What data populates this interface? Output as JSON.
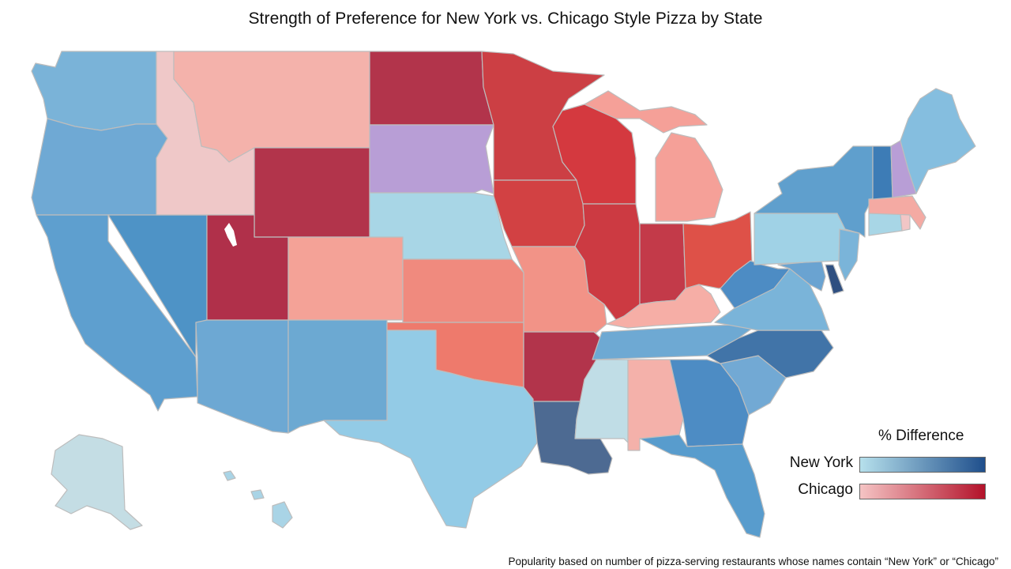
{
  "title": "Strength of Preference for New York vs. Chicago Style Pizza by State",
  "legend": {
    "title": "% Difference",
    "new_york_label": "New York",
    "chicago_label": "Chicago",
    "new_york_color_light": "#b6e0ec",
    "new_york_color_dark": "#1f4f8c",
    "chicago_color_light": "#f5c4c4",
    "chicago_color_dark": "#b3122a",
    "neutral_color": "#b89ed6"
  },
  "footnote": "Popularity based on number of pizza-serving restaurants whose names contain “New York” or “Chicago”",
  "states": [
    {
      "code": "WA",
      "color": "#7ab3d8"
    },
    {
      "code": "OR",
      "color": "#6fa9d4"
    },
    {
      "code": "CA",
      "color": "#5e9fcf"
    },
    {
      "code": "NV",
      "color": "#4e93c6"
    },
    {
      "code": "ID",
      "color": "#efc8c8"
    },
    {
      "code": "MT",
      "color": "#f4b2ab"
    },
    {
      "code": "WY",
      "color": "#b2344b"
    },
    {
      "code": "UT",
      "color": "#b0304a"
    },
    {
      "code": "AZ",
      "color": "#6da8d3"
    },
    {
      "code": "CO",
      "color": "#f4a297"
    },
    {
      "code": "NM",
      "color": "#6ca9d2"
    },
    {
      "code": "ND",
      "color": "#b2344b"
    },
    {
      "code": "SD",
      "color": "#b89ed6"
    },
    {
      "code": "NE",
      "color": "#a8d6e6"
    },
    {
      "code": "KS",
      "color": "#f08a7e"
    },
    {
      "code": "OK",
      "color": "#ee7a6c"
    },
    {
      "code": "TX",
      "color": "#93cbe6"
    },
    {
      "code": "MN",
      "color": "#cc3f44"
    },
    {
      "code": "IA",
      "color": "#d24143"
    },
    {
      "code": "MO",
      "color": "#f29387"
    },
    {
      "code": "AR",
      "color": "#b2344b"
    },
    {
      "code": "LA",
      "color": "#4d6a92"
    },
    {
      "code": "WI",
      "color": "#d4393f"
    },
    {
      "code": "IL",
      "color": "#cc3a42"
    },
    {
      "code": "MI",
      "color": "#f5a098"
    },
    {
      "code": "IN",
      "color": "#c33a49"
    },
    {
      "code": "OH",
      "color": "#de5148"
    },
    {
      "code": "KY",
      "color": "#f6aea6"
    },
    {
      "code": "TN",
      "color": "#6ea9d3"
    },
    {
      "code": "MS",
      "color": "#c0dde6"
    },
    {
      "code": "AL",
      "color": "#f4b1aa"
    },
    {
      "code": "GA",
      "color": "#4d8cc4"
    },
    {
      "code": "FL",
      "color": "#589ccd"
    },
    {
      "code": "SC",
      "color": "#72a9d4"
    },
    {
      "code": "NC",
      "color": "#4174a8"
    },
    {
      "code": "VA",
      "color": "#7ab4d9"
    },
    {
      "code": "WV",
      "color": "#4d8cc4"
    },
    {
      "code": "MD",
      "color": "#6aa3d1"
    },
    {
      "code": "DE",
      "color": "#2f4f80"
    },
    {
      "code": "PA",
      "color": "#a0d2e6"
    },
    {
      "code": "NJ",
      "color": "#7ab4d9"
    },
    {
      "code": "NY",
      "color": "#5f9fcd"
    },
    {
      "code": "CT",
      "color": "#a8d6e6"
    },
    {
      "code": "RI",
      "color": "#f2c6c6"
    },
    {
      "code": "MA",
      "color": "#f4aaa3"
    },
    {
      "code": "VT",
      "color": "#3d7cb6"
    },
    {
      "code": "NH",
      "color": "#b89ed6"
    },
    {
      "code": "ME",
      "color": "#85bedf"
    },
    {
      "code": "AK",
      "color": "#c4dde4"
    },
    {
      "code": "HI",
      "color": "#a9d4e6"
    }
  ]
}
